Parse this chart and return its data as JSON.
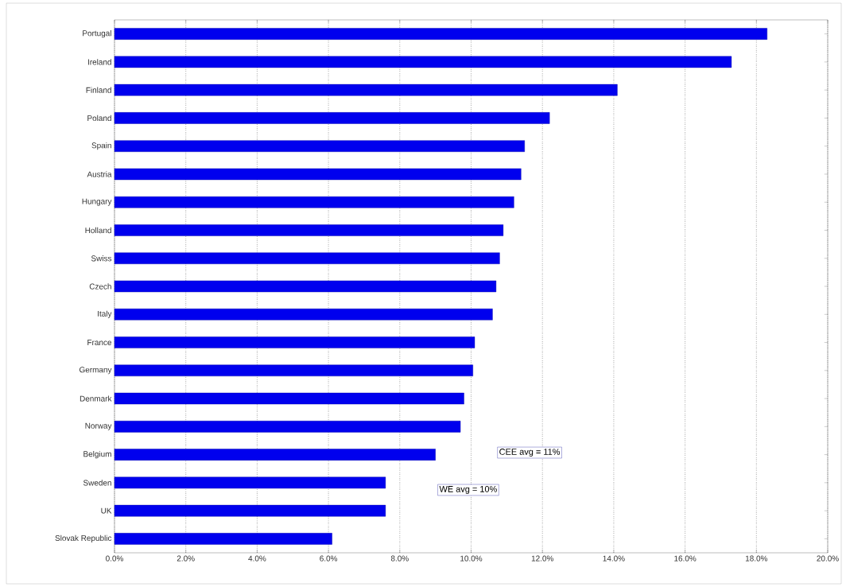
{
  "chart_data": {
    "type": "bar",
    "orientation": "horizontal",
    "categories": [
      "Portugal",
      "Ireland",
      "Finland",
      "Poland",
      "Spain",
      "Austria",
      "Hungary",
      "Holland",
      "Swiss",
      "Czech",
      "Italy",
      "France",
      "Germany",
      "Denmark",
      "Norway",
      "Belgium",
      "Sweden",
      "UK",
      "Slovak Republic"
    ],
    "values": [
      18.3,
      17.3,
      14.1,
      12.2,
      11.5,
      11.4,
      11.2,
      10.9,
      10.8,
      10.7,
      10.6,
      10.1,
      10.05,
      9.8,
      9.7,
      9.0,
      7.6,
      7.6,
      6.1
    ],
    "color": "#0000ee",
    "xlim": [
      0,
      20
    ],
    "xticks": [
      {
        "value": 0,
        "label": "0.0%"
      },
      {
        "value": 2,
        "label": "2.0%"
      },
      {
        "value": 4,
        "label": "4.0%"
      },
      {
        "value": 6,
        "label": "6.0%"
      },
      {
        "value": 8,
        "label": "8.0%"
      },
      {
        "value": 10,
        "label": "10.0%"
      },
      {
        "value": 12,
        "label": "12.0%"
      },
      {
        "value": 14,
        "label": "14.0%"
      },
      {
        "value": 16,
        "label": "16.0%"
      },
      {
        "value": 18,
        "label": "18.0%"
      },
      {
        "value": 20,
        "label": "20.0%"
      }
    ],
    "grid": "x",
    "annotations": [
      "CEE avg = 11%",
      "WE avg = 10%"
    ]
  }
}
